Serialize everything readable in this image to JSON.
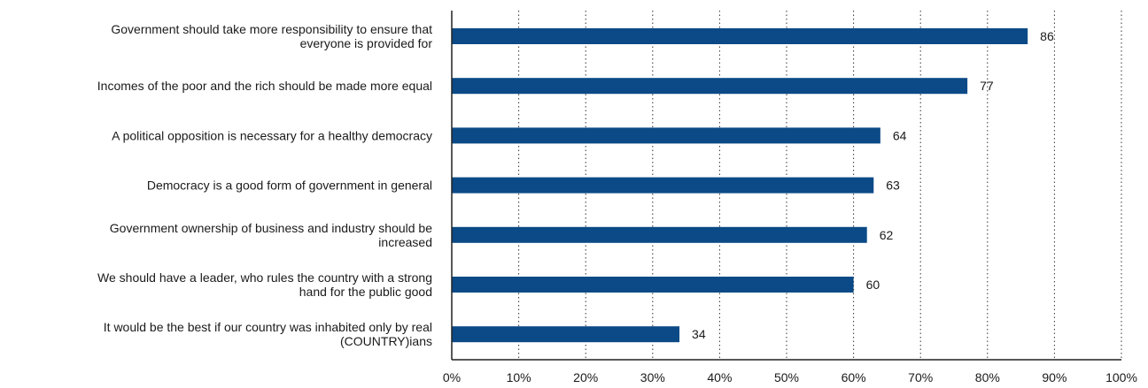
{
  "chart_data": {
    "type": "bar",
    "orientation": "horizontal",
    "categories": [
      [
        "Government should take more responsibility to ensure that",
        "everyone is provided for"
      ],
      [
        "Incomes of the poor and the rich should be made more equal"
      ],
      [
        "A political opposition is necessary for a healthy democracy"
      ],
      [
        "Democracy is a good form of government in general"
      ],
      [
        "Government ownership of business and industry should be",
        "increased"
      ],
      [
        "We should have a leader, who rules the country with a strong",
        "hand for the public good"
      ],
      [
        "It would be the best if our country was inhabited only by real",
        "(COUNTRY)ians"
      ]
    ],
    "values": [
      86,
      77,
      64,
      63,
      62,
      60,
      34
    ],
    "value_labels": [
      "86",
      "77",
      "64",
      "63",
      "62",
      "60",
      "34"
    ],
    "xlim": [
      0,
      100
    ],
    "x_ticks": [
      0,
      10,
      20,
      30,
      40,
      50,
      60,
      70,
      80,
      90,
      100
    ],
    "x_tick_labels": [
      "0%",
      "10%",
      "20%",
      "30%",
      "40%",
      "50%",
      "60%",
      "70%",
      "80%",
      "90%",
      "100%"
    ],
    "title": "",
    "xlabel": "",
    "ylabel": "",
    "grid": "vertical dotted",
    "legend": "none",
    "bar_color": "#0b4a86"
  }
}
